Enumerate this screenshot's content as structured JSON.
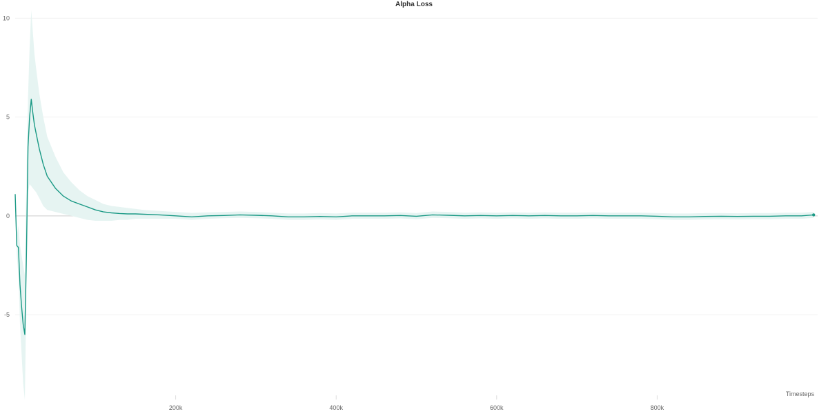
{
  "chart_data": {
    "type": "line",
    "title": "Alpha Loss",
    "xlabel": "Timesteps",
    "ylabel": "",
    "xlim": [
      0,
      1000000
    ],
    "ylim": [
      -9.5,
      10.5
    ],
    "grid": true,
    "x_ticks": [
      {
        "value": 200000,
        "label": "200k"
      },
      {
        "value": 400000,
        "label": "400k"
      },
      {
        "value": 600000,
        "label": "600k"
      },
      {
        "value": 800000,
        "label": "800k"
      }
    ],
    "y_ticks": [
      {
        "value": 10,
        "label": "10"
      },
      {
        "value": 5,
        "label": "5"
      },
      {
        "value": 0,
        "label": "0"
      },
      {
        "value": -5,
        "label": "-5"
      }
    ],
    "series": [
      {
        "color": "#1a9985",
        "band_color": "#e6f4f2",
        "x": [
          0,
          2000,
          4000,
          6000,
          8000,
          10000,
          12000,
          14000,
          16000,
          18000,
          20000,
          22000,
          24000,
          26000,
          30000,
          35000,
          40000,
          50000,
          60000,
          70000,
          80000,
          90000,
          100000,
          110000,
          120000,
          130000,
          140000,
          150000,
          160000,
          180000,
          200000,
          220000,
          240000,
          260000,
          280000,
          300000,
          320000,
          340000,
          360000,
          380000,
          400000,
          420000,
          440000,
          460000,
          480000,
          500000,
          520000,
          540000,
          560000,
          580000,
          600000,
          620000,
          640000,
          660000,
          680000,
          700000,
          720000,
          740000,
          760000,
          780000,
          800000,
          820000,
          840000,
          860000,
          880000,
          900000,
          920000,
          940000,
          960000,
          980000,
          995000
        ],
        "y": [
          1.1,
          -1.5,
          -1.6,
          -3.5,
          -4.6,
          -5.5,
          -6.0,
          -2.0,
          3.5,
          5.0,
          5.9,
          5.2,
          4.6,
          4.2,
          3.4,
          2.6,
          2.0,
          1.4,
          1.0,
          0.75,
          0.6,
          0.45,
          0.3,
          0.2,
          0.15,
          0.12,
          0.1,
          0.1,
          0.08,
          0.05,
          0.0,
          -0.05,
          0.0,
          0.02,
          0.05,
          0.03,
          0.0,
          -0.05,
          -0.05,
          -0.03,
          -0.05,
          0.0,
          0.0,
          0.0,
          0.02,
          -0.02,
          0.05,
          0.03,
          0.0,
          0.02,
          0.0,
          0.02,
          0.0,
          0.02,
          0.0,
          0.0,
          0.02,
          0.0,
          0.0,
          0.0,
          -0.02,
          -0.05,
          -0.05,
          -0.03,
          -0.02,
          -0.03,
          -0.02,
          -0.02,
          0.0,
          0.0,
          0.05
        ],
        "lower": [
          0.9,
          -2.0,
          -3.0,
          -5.5,
          -7.0,
          -8.5,
          -9.3,
          -4.0,
          1.2,
          1.6,
          1.5,
          1.4,
          1.3,
          1.2,
          0.9,
          0.5,
          0.3,
          0.2,
          0.1,
          0.0,
          -0.1,
          -0.2,
          -0.25,
          -0.25,
          -0.25,
          -0.2,
          -0.2,
          -0.15,
          -0.15,
          -0.15,
          -0.15,
          -0.2,
          -0.15,
          -0.12,
          -0.1,
          -0.12,
          -0.15,
          -0.2,
          -0.2,
          -0.18,
          -0.2,
          -0.15,
          -0.15,
          -0.15,
          -0.13,
          -0.17,
          -0.1,
          -0.12,
          -0.15,
          -0.13,
          -0.15,
          -0.13,
          -0.15,
          -0.13,
          -0.15,
          -0.15,
          -0.13,
          -0.15,
          -0.15,
          -0.15,
          -0.17,
          -0.2,
          -0.2,
          -0.18,
          -0.17,
          -0.18,
          -0.17,
          -0.17,
          -0.15,
          -0.15,
          -0.1
        ],
        "upper": [
          1.3,
          -1.0,
          -0.5,
          -1.5,
          -2.0,
          -2.5,
          -3.0,
          2.0,
          6.0,
          8.5,
          10.4,
          9.3,
          8.2,
          7.5,
          6.2,
          5.0,
          4.0,
          3.0,
          2.2,
          1.7,
          1.3,
          1.0,
          0.8,
          0.6,
          0.5,
          0.45,
          0.4,
          0.35,
          0.3,
          0.25,
          0.2,
          0.15,
          0.18,
          0.2,
          0.22,
          0.2,
          0.16,
          0.12,
          0.12,
          0.14,
          0.12,
          0.16,
          0.16,
          0.16,
          0.18,
          0.14,
          0.22,
          0.2,
          0.16,
          0.18,
          0.16,
          0.18,
          0.16,
          0.18,
          0.16,
          0.16,
          0.18,
          0.16,
          0.16,
          0.16,
          0.14,
          0.12,
          0.12,
          0.14,
          0.14,
          0.13,
          0.14,
          0.14,
          0.16,
          0.16,
          0.2
        ]
      }
    ]
  }
}
